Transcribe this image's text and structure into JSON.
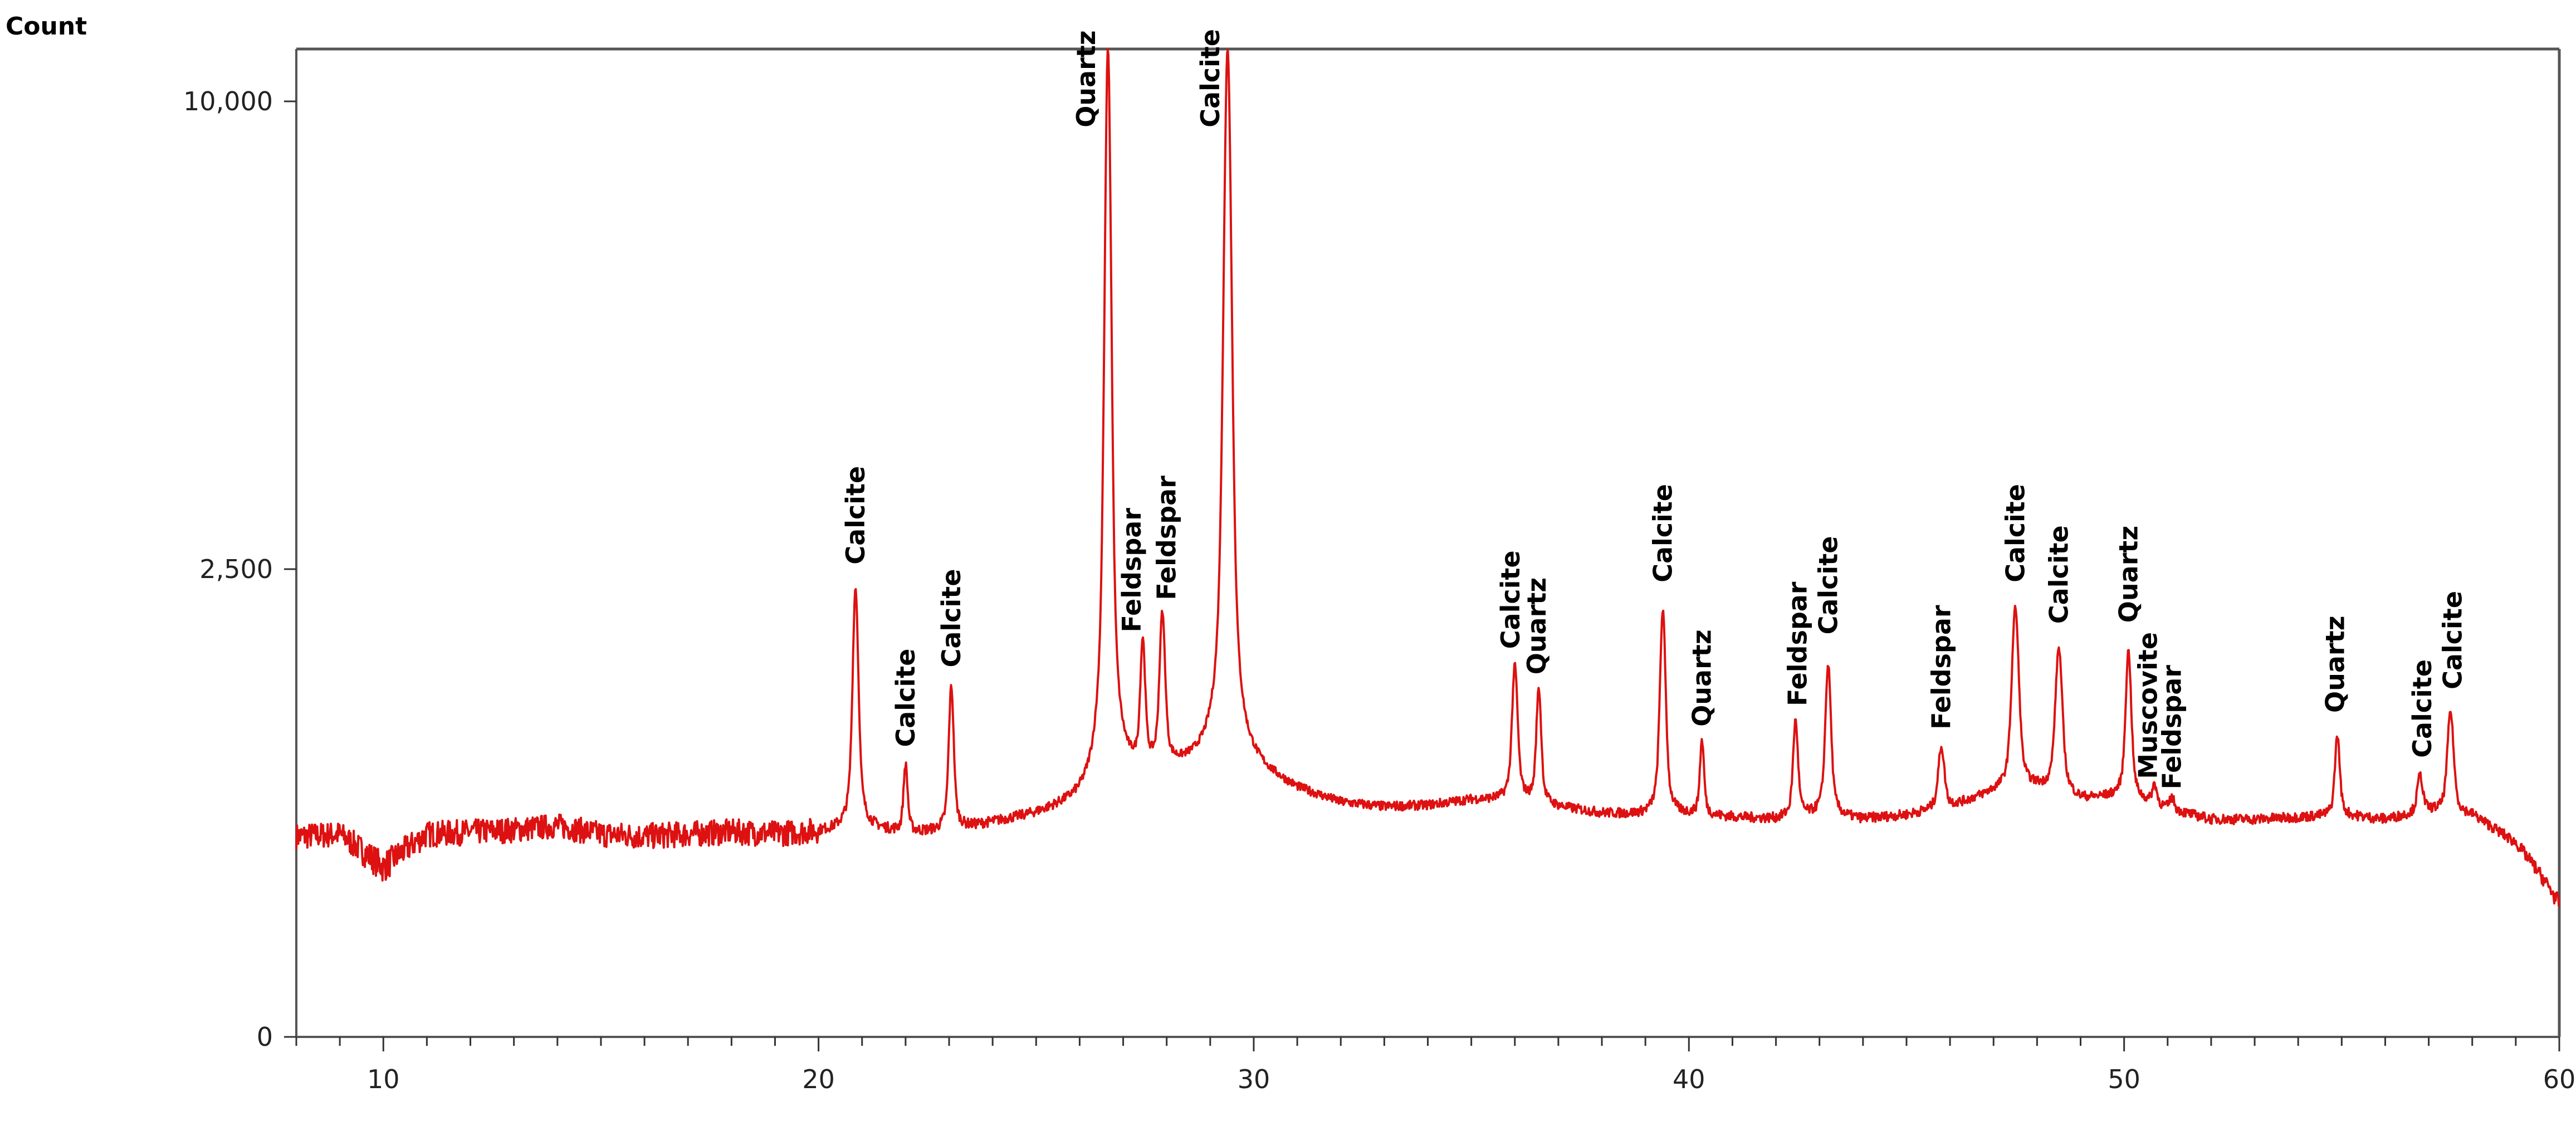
{
  "chart_data": {
    "type": "line",
    "title": "",
    "xlabel": "",
    "ylabel": "Count",
    "xlim": [
      8,
      60
    ],
    "y_scale": "sqrt",
    "ylim": [
      0,
      11150
    ],
    "grid": false,
    "x_ticks": [
      10,
      20,
      30,
      40,
      50,
      60
    ],
    "x_tick_labels": [
      "10",
      "20",
      "30",
      "40",
      "50",
      "60"
    ],
    "y_ticks": [
      0,
      2500,
      10000
    ],
    "y_tick_labels": [
      "0",
      "2,500",
      "10,000"
    ],
    "line_color": "#dd1111",
    "series": [
      {
        "name": "",
        "baseline": [
          [
            8,
            460
          ],
          [
            9,
            470
          ],
          [
            10,
            330
          ],
          [
            11,
            470
          ],
          [
            12,
            480
          ],
          [
            13,
            490
          ],
          [
            14,
            510
          ],
          [
            15,
            470
          ],
          [
            16,
            460
          ],
          [
            17,
            470
          ],
          [
            18,
            480
          ],
          [
            19,
            470
          ],
          [
            20,
            480
          ],
          [
            21,
            500
          ],
          [
            22,
            470
          ],
          [
            23,
            480
          ],
          [
            24,
            520
          ],
          [
            25,
            560
          ],
          [
            26,
            620
          ],
          [
            27,
            750
          ],
          [
            28,
            800
          ],
          [
            29,
            850
          ],
          [
            30,
            800
          ],
          [
            31,
            690
          ],
          [
            32,
            620
          ],
          [
            33,
            600
          ],
          [
            34,
            610
          ],
          [
            35,
            640
          ],
          [
            36,
            640
          ],
          [
            37,
            600
          ],
          [
            38,
            570
          ],
          [
            39,
            560
          ],
          [
            40,
            560
          ],
          [
            41,
            550
          ],
          [
            42,
            540
          ],
          [
            43,
            560
          ],
          [
            44,
            540
          ],
          [
            45,
            560
          ],
          [
            46,
            600
          ],
          [
            47,
            680
          ],
          [
            48,
            700
          ],
          [
            49,
            640
          ],
          [
            50,
            660
          ],
          [
            51,
            590
          ],
          [
            52,
            540
          ],
          [
            53,
            540
          ],
          [
            54,
            550
          ],
          [
            55,
            560
          ],
          [
            56,
            540
          ],
          [
            57,
            580
          ],
          [
            58,
            560
          ],
          [
            59,
            430
          ],
          [
            60,
            200
          ]
        ],
        "peaks": [
          {
            "x": 20.85,
            "y": 2300,
            "w": 0.08
          },
          {
            "x": 22.0,
            "y": 840,
            "w": 0.06
          },
          {
            "x": 23.05,
            "y": 1400,
            "w": 0.07
          },
          {
            "x": 26.65,
            "y": 11150,
            "w": 0.09
          },
          {
            "x": 27.45,
            "y": 1720,
            "w": 0.07
          },
          {
            "x": 27.9,
            "y": 2000,
            "w": 0.08
          },
          {
            "x": 29.4,
            "y": 11150,
            "w": 0.11
          },
          {
            "x": 36.0,
            "y": 1570,
            "w": 0.08
          },
          {
            "x": 36.55,
            "y": 1380,
            "w": 0.07
          },
          {
            "x": 39.4,
            "y": 2080,
            "w": 0.08
          },
          {
            "x": 40.3,
            "y": 1000,
            "w": 0.06
          },
          {
            "x": 42.45,
            "y": 1140,
            "w": 0.07
          },
          {
            "x": 43.2,
            "y": 1580,
            "w": 0.08
          },
          {
            "x": 45.8,
            "y": 960,
            "w": 0.09
          },
          {
            "x": 47.5,
            "y": 2100,
            "w": 0.1
          },
          {
            "x": 48.5,
            "y": 1720,
            "w": 0.1
          },
          {
            "x": 50.1,
            "y": 1700,
            "w": 0.08
          },
          {
            "x": 50.7,
            "y": 720,
            "w": 0.07
          },
          {
            "x": 51.1,
            "y": 650,
            "w": 0.07
          },
          {
            "x": 54.9,
            "y": 1040,
            "w": 0.07
          },
          {
            "x": 56.8,
            "y": 780,
            "w": 0.08
          },
          {
            "x": 57.5,
            "y": 1210,
            "w": 0.09
          }
        ]
      }
    ],
    "annotations": [
      {
        "text": "Calcite",
        "x": 20.85,
        "y": 2550
      },
      {
        "text": "Calcite",
        "x": 22.0,
        "y": 960
      },
      {
        "text": "Calcite",
        "x": 23.05,
        "y": 1560
      },
      {
        "text": "Quartz",
        "x": 26.15,
        "y": 9450
      },
      {
        "text": "Feldspar",
        "x": 27.2,
        "y": 1870
      },
      {
        "text": "Feldspar",
        "x": 28.0,
        "y": 2180
      },
      {
        "text": "Calcite",
        "x": 29.0,
        "y": 9450
      },
      {
        "text": "Calcite",
        "x": 35.9,
        "y": 1720
      },
      {
        "text": "Quartz",
        "x": 36.5,
        "y": 1500
      },
      {
        "text": "Calcite",
        "x": 39.4,
        "y": 2360
      },
      {
        "text": "Quartz",
        "x": 40.3,
        "y": 1100
      },
      {
        "text": "Feldspar",
        "x": 42.5,
        "y": 1250
      },
      {
        "text": "Calcite",
        "x": 43.2,
        "y": 1850
      },
      {
        "text": "Feldspar",
        "x": 45.8,
        "y": 1080
      },
      {
        "text": "Calcite",
        "x": 47.5,
        "y": 2360
      },
      {
        "text": "Calcite",
        "x": 48.5,
        "y": 1950
      },
      {
        "text": "Quartz",
        "x": 50.1,
        "y": 1960
      },
      {
        "text": "Muscovite",
        "x": 50.55,
        "y": 760
      },
      {
        "text": "Feldspar",
        "x": 51.1,
        "y": 700
      },
      {
        "text": "Quartz",
        "x": 54.85,
        "y": 1200
      },
      {
        "text": "Calcite",
        "x": 56.85,
        "y": 890
      },
      {
        "text": "Calcite",
        "x": 57.55,
        "y": 1380
      }
    ]
  }
}
